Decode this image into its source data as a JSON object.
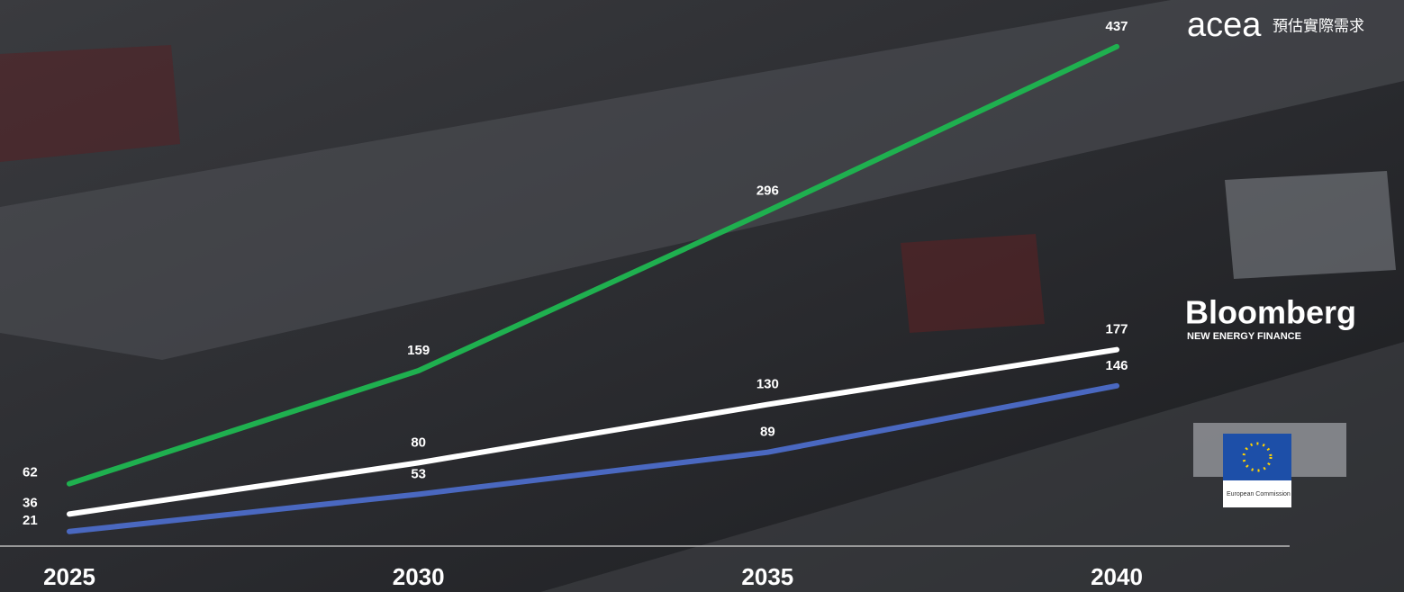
{
  "chart_data": {
    "type": "line",
    "x": [
      2025,
      2030,
      2035,
      2040
    ],
    "xlim": [
      2025,
      2040
    ],
    "xticks": [
      2025,
      2030,
      2035,
      2040
    ],
    "ylim": [
      0,
      450
    ],
    "series": [
      {
        "name": "acea",
        "note": "預估實際需求",
        "color": "#1fb04f",
        "values": [
          62,
          159,
          296,
          437
        ]
      },
      {
        "name": "Bloomberg",
        "note": "NEW ENERGY FINANCE",
        "color": "#ffffff",
        "values": [
          36,
          80,
          130,
          177
        ]
      },
      {
        "name": "European Commission",
        "color": "#4a68c0",
        "values": [
          21,
          53,
          89,
          146
        ]
      }
    ]
  }
}
